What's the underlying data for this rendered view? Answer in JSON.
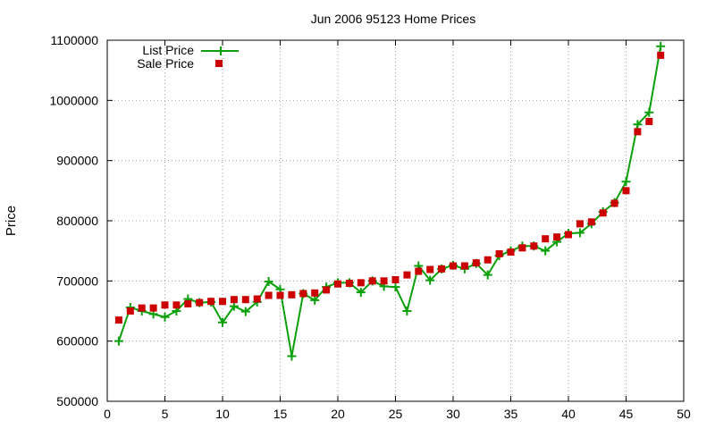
{
  "chart_data": {
    "type": "line",
    "title": "Jun 2006 95123 Home Prices",
    "xlabel": "",
    "ylabel": "Price",
    "xlim": [
      0,
      50
    ],
    "ylim": [
      500000,
      1100000
    ],
    "x_ticks": [
      0,
      5,
      10,
      15,
      20,
      25,
      30,
      35,
      40,
      45,
      50
    ],
    "y_ticks": [
      500000,
      600000,
      700000,
      800000,
      900000,
      1000000,
      1100000
    ],
    "x_tick_labels": [
      "0",
      "5",
      "10",
      "15",
      "20",
      "25",
      "30",
      "35",
      "40",
      "45",
      "50"
    ],
    "y_tick_labels": [
      "500000",
      "600000",
      "700000",
      "800000",
      "900000",
      "1000000",
      "1100000"
    ],
    "grid": true,
    "legend_position": "top-left",
    "x": [
      1,
      2,
      3,
      4,
      5,
      6,
      7,
      8,
      9,
      10,
      11,
      12,
      13,
      14,
      15,
      16,
      17,
      18,
      19,
      20,
      21,
      22,
      23,
      24,
      25,
      26,
      27,
      28,
      29,
      30,
      31,
      32,
      33,
      34,
      35,
      36,
      37,
      38,
      39,
      40,
      41,
      42,
      43,
      44,
      45,
      46,
      47,
      48
    ],
    "series": [
      {
        "name": "List Price",
        "style": "line-plus",
        "color": "#0aa00a",
        "values": [
          600000,
          656000,
          650000,
          645000,
          640000,
          650000,
          670000,
          664000,
          665000,
          631000,
          658000,
          649000,
          665000,
          699000,
          686000,
          575000,
          679000,
          668000,
          690000,
          697000,
          697000,
          681000,
          700000,
          691000,
          690000,
          650000,
          725000,
          701000,
          720000,
          726000,
          720000,
          729000,
          710000,
          742000,
          750000,
          758000,
          758000,
          750000,
          765000,
          779000,
          780000,
          795000,
          815000,
          830000,
          865000,
          960000,
          980000,
          1090000
        ]
      },
      {
        "name": "Sale Price",
        "style": "square",
        "color": "#cc0000",
        "values": [
          635000,
          650000,
          655000,
          655000,
          660000,
          660000,
          662000,
          664000,
          666000,
          666000,
          669000,
          669000,
          670000,
          676000,
          676000,
          677000,
          679000,
          680000,
          685000,
          695000,
          696000,
          697000,
          700000,
          700000,
          702000,
          710000,
          716000,
          719000,
          720000,
          725000,
          725000,
          730000,
          735000,
          745000,
          748000,
          755000,
          758000,
          770000,
          773000,
          777000,
          795000,
          798000,
          813000,
          829000,
          850000,
          948000,
          965000,
          1075000
        ]
      }
    ]
  }
}
